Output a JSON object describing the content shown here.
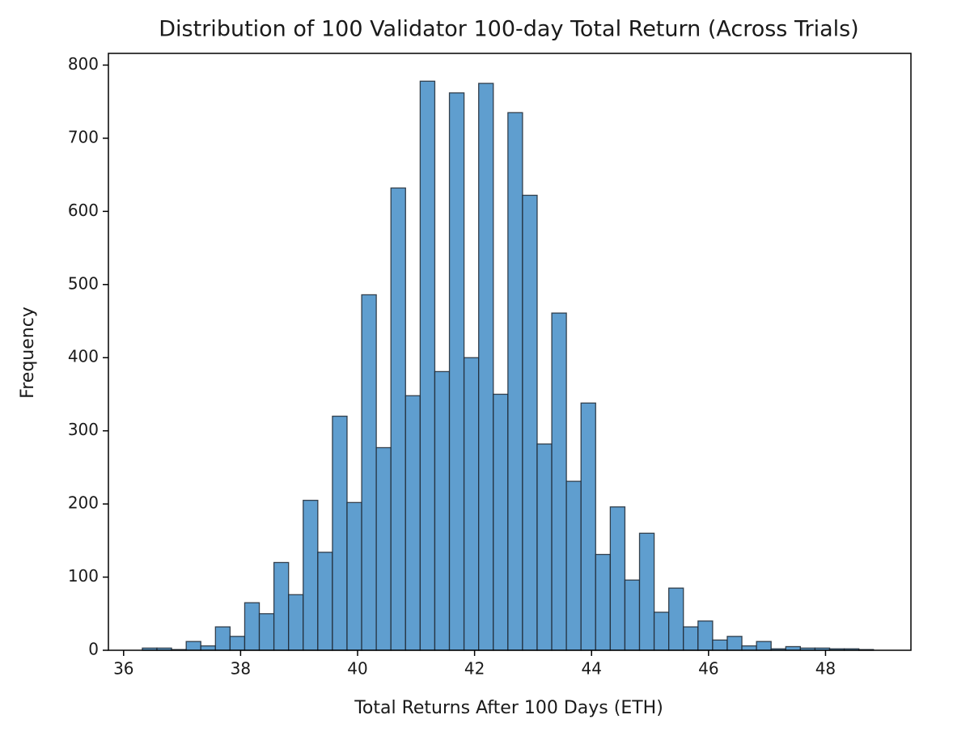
{
  "chart_data": {
    "type": "histogram",
    "title": "Distribution of 100 Validator 100-day Total Return (Across Trials)",
    "x_label": "Total Returns After 100 Days (ETH)",
    "y_label": "Frequency",
    "bins": [
      36.32,
      36.57,
      36.82,
      37.07,
      37.32,
      37.57,
      37.82,
      38.07,
      38.32,
      38.57,
      38.82,
      39.07,
      39.32,
      39.57,
      39.82,
      40.07,
      40.32,
      40.57,
      40.82,
      41.07,
      41.32,
      41.57,
      41.82,
      42.07,
      42.32,
      42.57,
      42.82,
      43.07,
      43.32,
      43.57,
      43.82,
      44.07,
      44.32,
      44.57,
      44.82,
      45.07,
      45.32,
      45.57,
      45.82,
      46.07,
      46.32,
      46.57,
      46.82,
      47.07,
      47.32,
      47.57,
      47.82,
      48.07,
      48.32,
      48.57,
      48.82
    ],
    "values": [
      3,
      3,
      1,
      12,
      6,
      32,
      19,
      65,
      50,
      120,
      76,
      205,
      134,
      320,
      202,
      486,
      277,
      632,
      348,
      778,
      381,
      762,
      400,
      775,
      350,
      735,
      622,
      282,
      461,
      231,
      338,
      131,
      196,
      96,
      160,
      52,
      85,
      32,
      40,
      14,
      19,
      6,
      12,
      2,
      5,
      3,
      3,
      2,
      2,
      1
    ],
    "color": "#5f9ecf",
    "edgecolor": "#1e2833",
    "xlim": [
      35.74,
      49.46
    ],
    "ylim": [
      0,
      816
    ],
    "xticks": [
      36,
      38,
      40,
      42,
      44,
      46,
      48
    ],
    "yticks": [
      0,
      100,
      200,
      300,
      400,
      500,
      600,
      700,
      800
    ],
    "grid": false
  }
}
